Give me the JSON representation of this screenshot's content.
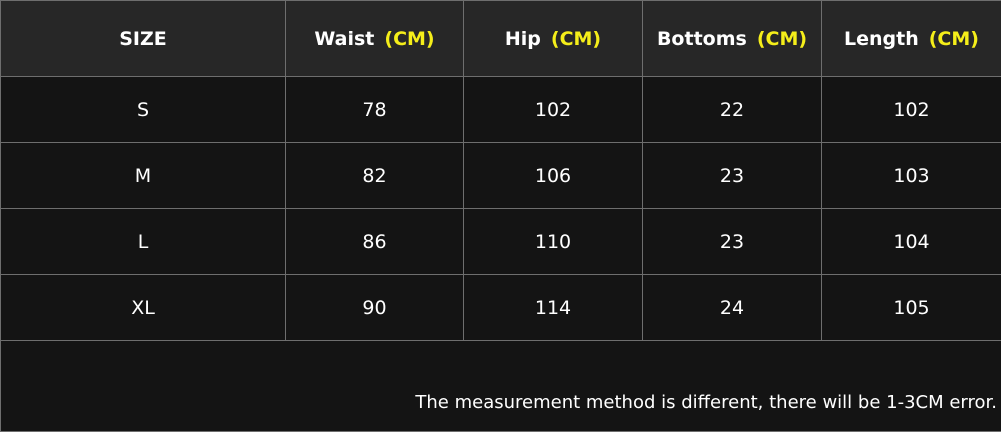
{
  "table": {
    "headers": [
      {
        "label": "SIZE",
        "unit": ""
      },
      {
        "label": "Waist",
        "unit": "(CM)"
      },
      {
        "label": "Hip",
        "unit": "(CM)"
      },
      {
        "label": "Bottoms",
        "unit": "(CM)"
      },
      {
        "label": "Length",
        "unit": "(CM)"
      }
    ],
    "rows": [
      [
        "S",
        "78",
        "102",
        "22",
        "102"
      ],
      [
        "M",
        "82",
        "106",
        "23",
        "103"
      ],
      [
        "L",
        "86",
        "110",
        "23",
        "104"
      ],
      [
        "XL",
        "90",
        "114",
        "24",
        "105"
      ]
    ],
    "note": "The measurement method is different, there will be 1-3CM error."
  },
  "colors": {
    "unit_accent": "#f5ee1a",
    "header_bg": "#272727",
    "row_bg": "#141414"
  }
}
